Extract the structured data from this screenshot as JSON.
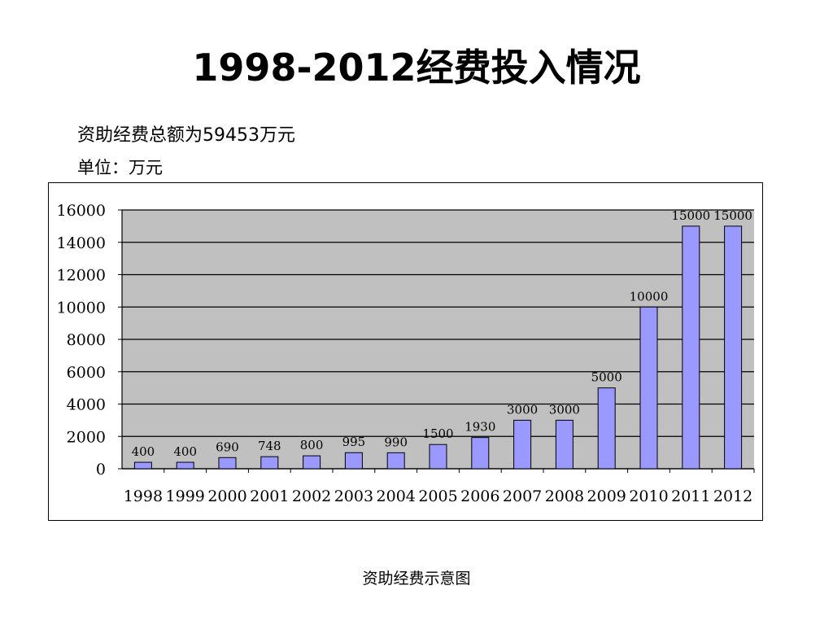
{
  "page": {
    "title": "1998-2012经费投入情况",
    "subtitle": "资助经费总额为59453万元",
    "unit": "单位：万元",
    "caption": "资助经费示意图"
  },
  "colors": {
    "plot_background": "#c0c0c0",
    "bar_fill": "#9999ff",
    "bar_stroke": "#000000",
    "gridline": "#000000"
  },
  "chart_data": {
    "type": "bar",
    "title": "",
    "xlabel": "",
    "ylabel": "",
    "categories": [
      "1998",
      "1999",
      "2000",
      "2001",
      "2002",
      "2003",
      "2004",
      "2005",
      "2006",
      "2007",
      "2008",
      "2009",
      "2010",
      "2011",
      "2012"
    ],
    "values": [
      400,
      400,
      690,
      748,
      800,
      995,
      990,
      1500,
      1930,
      3000,
      3000,
      5000,
      10000,
      15000,
      15000
    ],
    "data_labels": [
      "400",
      "400",
      "690",
      "748",
      "800",
      "995",
      "990",
      "1500",
      "1930",
      "3000",
      "3000",
      "5000",
      "10000",
      "15000",
      "15000"
    ],
    "ylim": [
      0,
      16000
    ],
    "yticks": [
      0,
      2000,
      4000,
      6000,
      8000,
      10000,
      12000,
      14000,
      16000
    ],
    "ytick_labels": [
      "0",
      "2000",
      "4000",
      "6000",
      "8000",
      "10000",
      "12000",
      "14000",
      "16000"
    ],
    "grid": true,
    "legend": "none"
  }
}
